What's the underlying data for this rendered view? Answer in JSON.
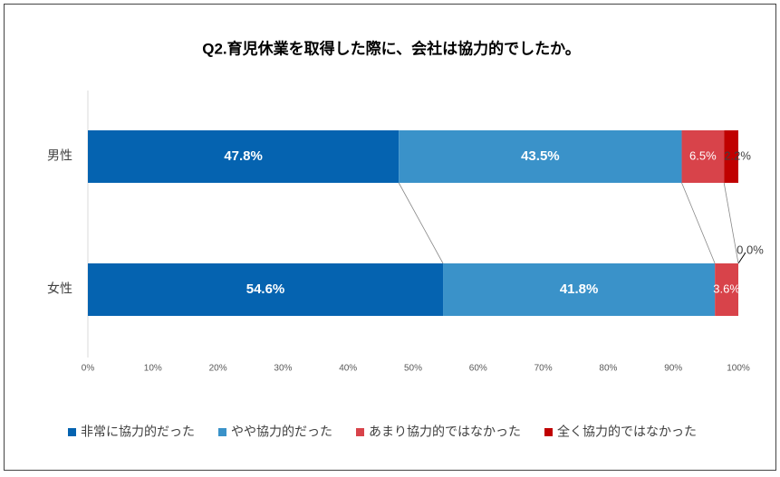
{
  "chart_data": {
    "type": "stacked-bar-horizontal",
    "title": "Q2.育児休業を取得した際に、会社は協力的でしたか。",
    "categories": [
      "男性",
      "女性"
    ],
    "series": [
      {
        "name": "非常に協力的だった",
        "color": "#0563b0",
        "values": [
          47.8,
          54.6
        ],
        "value_labels": [
          "47.8%",
          "54.6%"
        ]
      },
      {
        "name": "やや協力的だった",
        "color": "#3a92c9",
        "values": [
          43.5,
          41.8
        ],
        "value_labels": [
          "43.5%",
          "41.8%"
        ]
      },
      {
        "name": "あまり協力的ではなかった",
        "color": "#d8434a",
        "values": [
          6.5,
          3.6
        ],
        "value_labels": [
          "6.5%",
          "3.6%"
        ]
      },
      {
        "name": "全く協力的ではなかった",
        "color": "#c00000",
        "values": [
          2.2,
          0.0
        ],
        "value_labels": [
          "2.2%",
          "0.0%"
        ]
      }
    ],
    "xlim": [
      0,
      100
    ],
    "xticks": [
      {
        "value": 0,
        "label": "0%"
      },
      {
        "value": 10,
        "label": "10%"
      },
      {
        "value": 20,
        "label": "20%"
      },
      {
        "value": 30,
        "label": "30%"
      },
      {
        "value": 40,
        "label": "40%"
      },
      {
        "value": 50,
        "label": "50%"
      },
      {
        "value": 60,
        "label": "60%"
      },
      {
        "value": 70,
        "label": "70%"
      },
      {
        "value": 80,
        "label": "80%"
      },
      {
        "value": 90,
        "label": "90%"
      },
      {
        "value": 100,
        "label": "100%"
      }
    ],
    "legend": "bottom"
  }
}
